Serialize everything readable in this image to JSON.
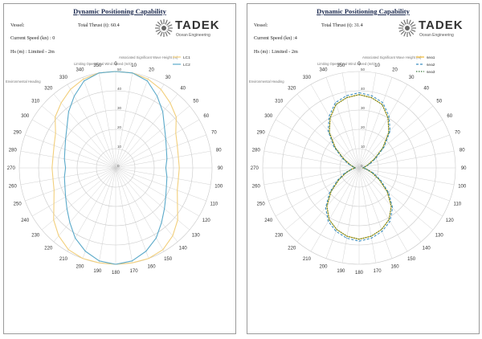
{
  "panels": [
    {
      "title": "Dynamic Positioning Capability",
      "vessel_label": "Vessel:",
      "thrust_label": "Total Thrust (t): 60.4",
      "speed_label": "Current Speed (kn) : 0",
      "hs_label": "Hs (m) : Limited   - 2m",
      "logo": {
        "name": "TADEK",
        "subtitle": "Ocean Engineering",
        "icon": "sunburst-logo-icon"
      },
      "chart_data": {
        "type": "polar",
        "title": "",
        "theta_label": "Environmental Heading",
        "r_label": "Limiting Operational Wind Speed (m/s)",
        "r_label2": "Associated Significant Wave Height (m)",
        "r_range": [
          0,
          50
        ],
        "r_ticks": [
          0,
          10,
          20,
          30,
          40,
          50
        ],
        "theta_ticks": [
          0,
          10,
          20,
          30,
          40,
          50,
          60,
          70,
          80,
          90,
          100,
          110,
          120,
          130,
          140,
          150,
          160,
          170,
          180,
          190,
          200,
          210,
          220,
          230,
          240,
          250,
          260,
          270,
          280,
          290,
          300,
          310,
          320,
          330,
          340,
          350
        ],
        "grid": true,
        "legend_position": "top-right",
        "series": [
          {
            "name": "LC1",
            "color": "#f2cf7c",
            "values": [
              50,
              50,
              49,
              47,
              44,
              41,
              36,
              34,
              33,
              33,
              33,
              34,
              37,
              42,
              46,
              49,
              50,
              50,
              50,
              50,
              50,
              49,
              46,
              42,
              37,
              34,
              33,
              33,
              33,
              34,
              36,
              41,
              44,
              47,
              49,
              50
            ]
          },
          {
            "name": "LC2",
            "color": "#5aa9c9",
            "values": [
              50,
              50,
              48,
              43,
              38,
              33,
              30,
              28,
              27,
              26,
              27,
              28,
              30,
              33,
              37,
              42,
              46,
              49,
              50,
              49,
              46,
              42,
              37,
              33,
              30,
              28,
              27,
              26,
              27,
              28,
              30,
              33,
              38,
              43,
              48,
              50
            ]
          }
        ]
      }
    },
    {
      "title": "Dynamic Positioning Capability",
      "vessel_label": "Vessel:",
      "thrust_label": "Total Thrust (t): 31.4",
      "speed_label": "Current Speed (kn) :4",
      "hs_label": "Hs (m) : Limited   - 2m",
      "logo": {
        "name": "TADEK",
        "subtitle": "Ocean Engineering",
        "icon": "sunburst-logo-icon"
      },
      "chart_data": {
        "type": "polar",
        "title": "",
        "theta_label": "Environmental Heading",
        "r_label": "Limiting Operational Wind Speed (m/s)",
        "r_label2": "Associated Significant Wave Height (m)",
        "r_range": [
          0,
          50
        ],
        "r_ticks": [
          0,
          10,
          20,
          30,
          40,
          50
        ],
        "theta_ticks": [
          0,
          10,
          20,
          30,
          40,
          50,
          60,
          70,
          80,
          90,
          100,
          110,
          120,
          130,
          140,
          150,
          160,
          170,
          180,
          190,
          200,
          210,
          220,
          230,
          240,
          250,
          260,
          270,
          280,
          290,
          300,
          310,
          320,
          330,
          340,
          350
        ],
        "grid": true,
        "legend_position": "top-right",
        "series": [
          {
            "name": "sea1",
            "color": "#f0b830",
            "dash": "",
            "values": [
              38,
              37,
              35,
              30,
              24,
              16,
              9,
              5,
              3,
              2,
              4,
              7,
              12,
              19,
              26,
              31,
              34,
              36,
              37,
              36,
              34,
              31,
              26,
              19,
              12,
              7,
              4,
              2,
              3,
              5,
              9,
              16,
              24,
              30,
              35,
              37
            ]
          },
          {
            "name": "sea2",
            "color": "#3f8fc0",
            "dash": "3,2",
            "values": [
              39,
              38,
              36,
              31,
              25,
              17,
              10,
              6,
              3,
              2,
              4,
              8,
              13,
              20,
              27,
              32,
              35,
              37,
              38,
              37,
              35,
              32,
              27,
              20,
              13,
              8,
              4,
              2,
              3,
              6,
              10,
              17,
              25,
              31,
              36,
              38
            ]
          },
          {
            "name": "sea3",
            "color": "#3d7a3d",
            "dash": "1.5,1.5",
            "values": [
              38,
              37,
              35,
              30,
              24,
              16,
              9,
              5,
              3,
              2,
              4,
              7,
              12,
              19,
              26,
              31,
              34,
              36,
              37,
              36,
              34,
              31,
              26,
              19,
              12,
              7,
              4,
              2,
              3,
              5,
              9,
              16,
              24,
              30,
              35,
              37
            ]
          }
        ]
      }
    }
  ]
}
